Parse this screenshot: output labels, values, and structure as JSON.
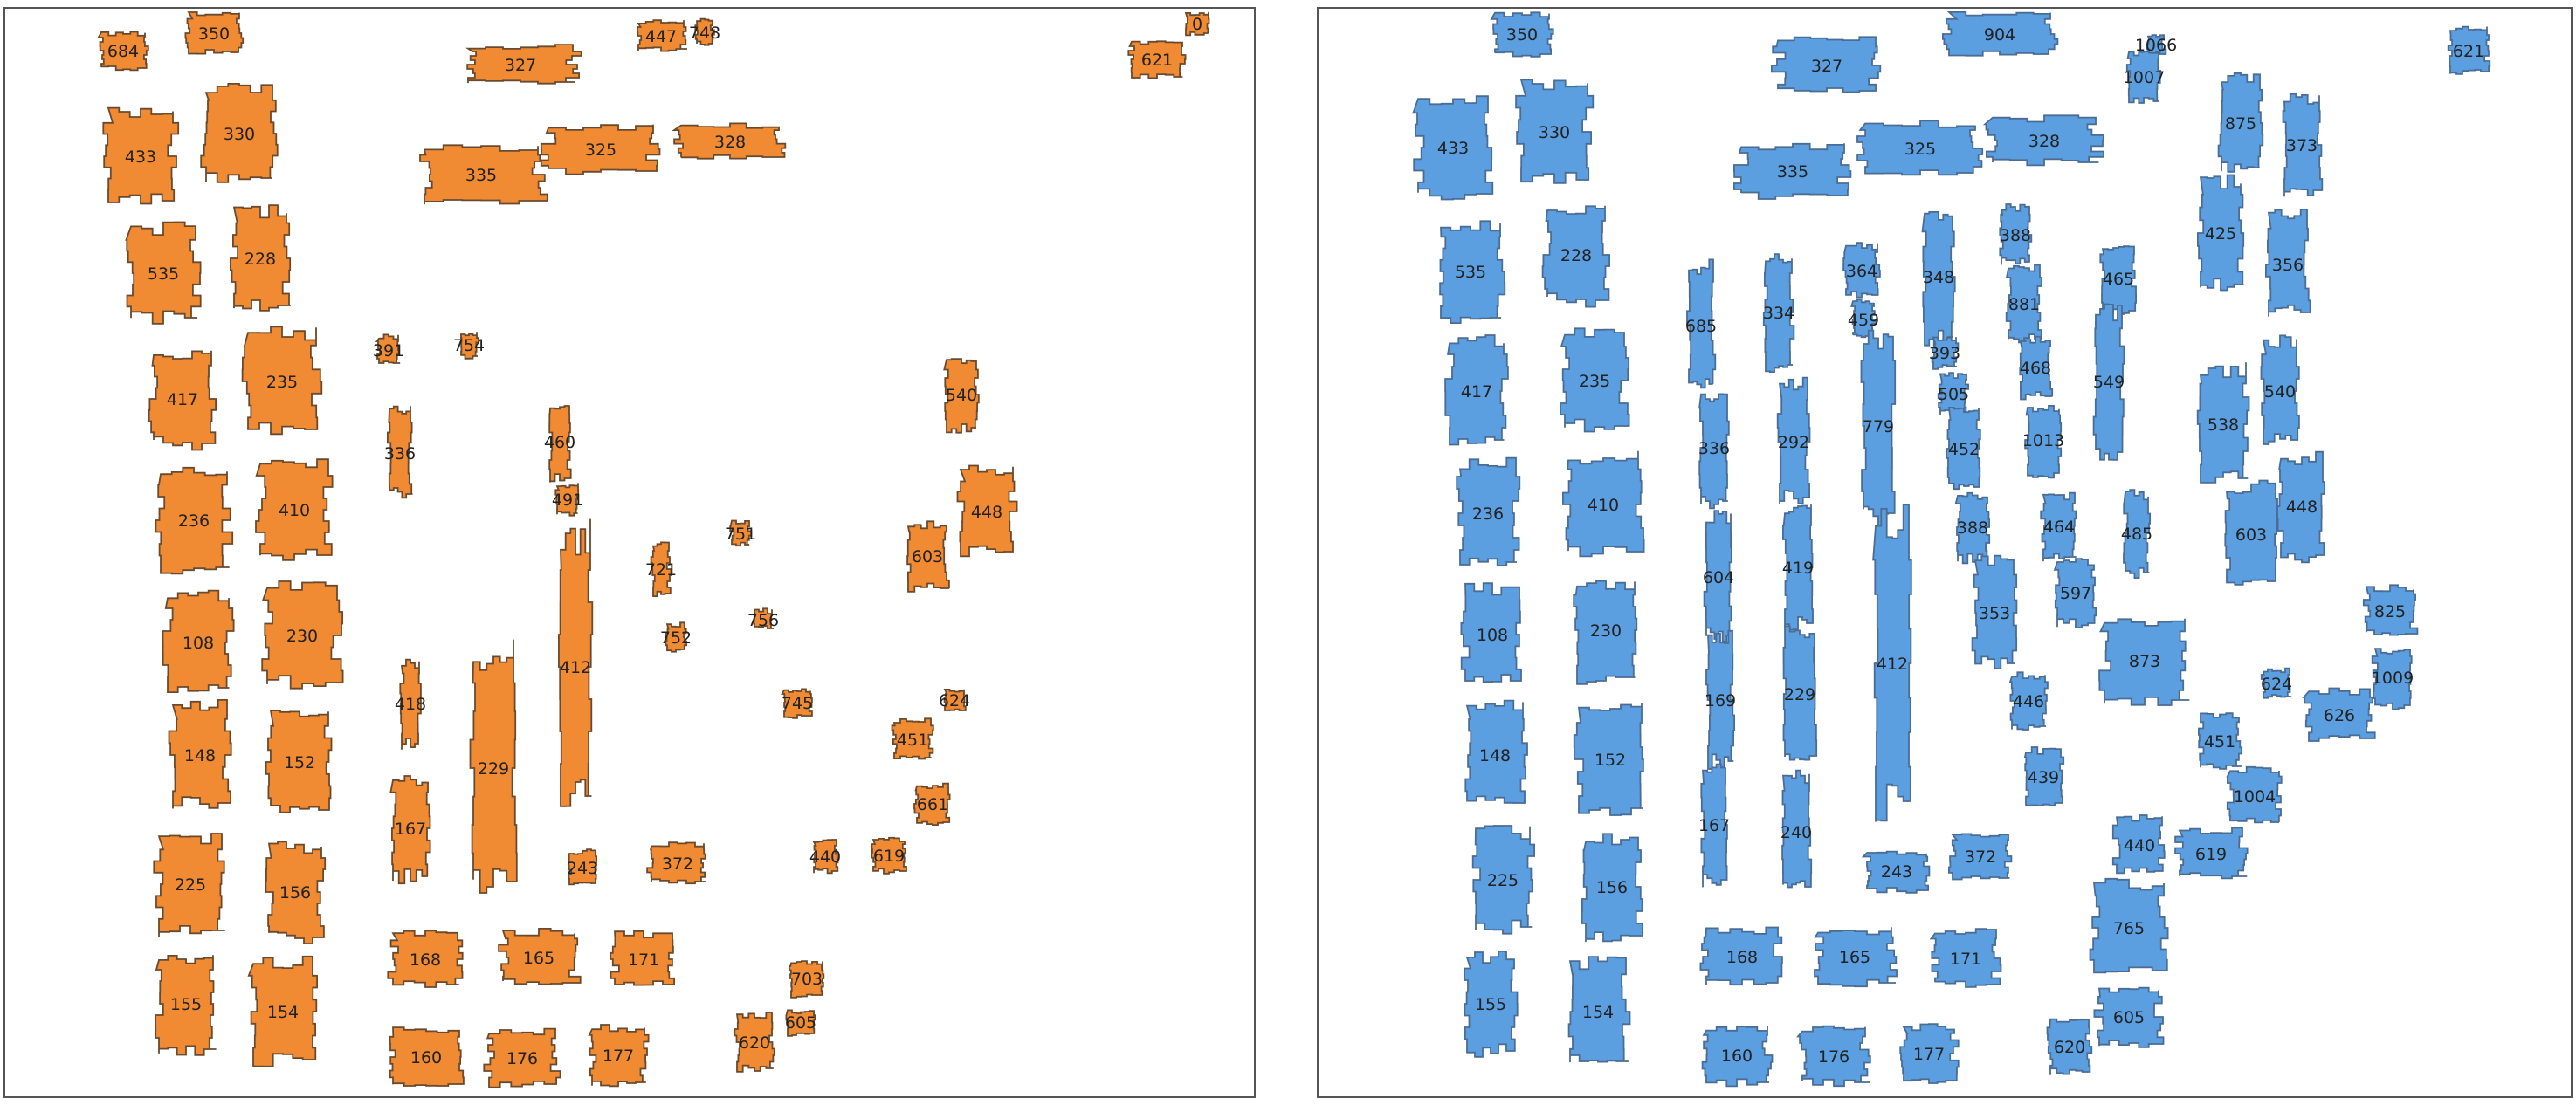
{
  "colors": {
    "left_fill": "#f08a33",
    "right_fill": "#5b9fe0",
    "frame": "#555555"
  },
  "left_panel": {
    "fill_color": "#f08a33",
    "parcels": [
      {
        "label": "684"
      },
      {
        "label": "350"
      },
      {
        "label": "327"
      },
      {
        "label": "447"
      },
      {
        "label": "748"
      },
      {
        "label": "621"
      },
      {
        "label": "0"
      },
      {
        "label": "433"
      },
      {
        "label": "330"
      },
      {
        "label": "335"
      },
      {
        "label": "325"
      },
      {
        "label": "328"
      },
      {
        "label": "535"
      },
      {
        "label": "228"
      },
      {
        "label": "391"
      },
      {
        "label": "754"
      },
      {
        "label": "417"
      },
      {
        "label": "235"
      },
      {
        "label": "540"
      },
      {
        "label": "336"
      },
      {
        "label": "460"
      },
      {
        "label": "491"
      },
      {
        "label": "236"
      },
      {
        "label": "410"
      },
      {
        "label": "448"
      },
      {
        "label": "751"
      },
      {
        "label": "603"
      },
      {
        "label": "721"
      },
      {
        "label": "108"
      },
      {
        "label": "230"
      },
      {
        "label": "752"
      },
      {
        "label": "756"
      },
      {
        "label": "412"
      },
      {
        "label": "418"
      },
      {
        "label": "745"
      },
      {
        "label": "624"
      },
      {
        "label": "148"
      },
      {
        "label": "152"
      },
      {
        "label": "451"
      },
      {
        "label": "229"
      },
      {
        "label": "661"
      },
      {
        "label": "167"
      },
      {
        "label": "225"
      },
      {
        "label": "156"
      },
      {
        "label": "243"
      },
      {
        "label": "372"
      },
      {
        "label": "440"
      },
      {
        "label": "619"
      },
      {
        "label": "168"
      },
      {
        "label": "165"
      },
      {
        "label": "171"
      },
      {
        "label": "703"
      },
      {
        "label": "155"
      },
      {
        "label": "154"
      },
      {
        "label": "605"
      },
      {
        "label": "620"
      },
      {
        "label": "160"
      },
      {
        "label": "176"
      },
      {
        "label": "177"
      }
    ]
  },
  "right_panel": {
    "fill_color": "#5b9fe0",
    "parcels": [
      {
        "label": "350"
      },
      {
        "label": "904"
      },
      {
        "label": "1066"
      },
      {
        "label": "621"
      },
      {
        "label": "327"
      },
      {
        "label": "1007"
      },
      {
        "label": "433"
      },
      {
        "label": "330"
      },
      {
        "label": "875"
      },
      {
        "label": "373"
      },
      {
        "label": "335"
      },
      {
        "label": "325"
      },
      {
        "label": "328"
      },
      {
        "label": "425"
      },
      {
        "label": "388"
      },
      {
        "label": "535"
      },
      {
        "label": "228"
      },
      {
        "label": "364"
      },
      {
        "label": "348"
      },
      {
        "label": "356"
      },
      {
        "label": "465"
      },
      {
        "label": "685"
      },
      {
        "label": "334"
      },
      {
        "label": "881"
      },
      {
        "label": "459"
      },
      {
        "label": "393"
      },
      {
        "label": "468"
      },
      {
        "label": "549"
      },
      {
        "label": "417"
      },
      {
        "label": "235"
      },
      {
        "label": "540"
      },
      {
        "label": "505"
      },
      {
        "label": "538"
      },
      {
        "label": "779"
      },
      {
        "label": "1013"
      },
      {
        "label": "336"
      },
      {
        "label": "292"
      },
      {
        "label": "452"
      },
      {
        "label": "236"
      },
      {
        "label": "410"
      },
      {
        "label": "448"
      },
      {
        "label": "388"
      },
      {
        "label": "464"
      },
      {
        "label": "485"
      },
      {
        "label": "603"
      },
      {
        "label": "604"
      },
      {
        "label": "419"
      },
      {
        "label": "597"
      },
      {
        "label": "353"
      },
      {
        "label": "825"
      },
      {
        "label": "108"
      },
      {
        "label": "230"
      },
      {
        "label": "873"
      },
      {
        "label": "412"
      },
      {
        "label": "1009"
      },
      {
        "label": "169"
      },
      {
        "label": "229"
      },
      {
        "label": "624"
      },
      {
        "label": "446"
      },
      {
        "label": "626"
      },
      {
        "label": "148"
      },
      {
        "label": "152"
      },
      {
        "label": "451"
      },
      {
        "label": "439"
      },
      {
        "label": "1004"
      },
      {
        "label": "167"
      },
      {
        "label": "240"
      },
      {
        "label": "440"
      },
      {
        "label": "225"
      },
      {
        "label": "156"
      },
      {
        "label": "243"
      },
      {
        "label": "372"
      },
      {
        "label": "619"
      },
      {
        "label": "765"
      },
      {
        "label": "168"
      },
      {
        "label": "165"
      },
      {
        "label": "171"
      },
      {
        "label": "155"
      },
      {
        "label": "154"
      },
      {
        "label": "605"
      },
      {
        "label": "620"
      },
      {
        "label": "160"
      },
      {
        "label": "176"
      },
      {
        "label": "177"
      }
    ]
  }
}
